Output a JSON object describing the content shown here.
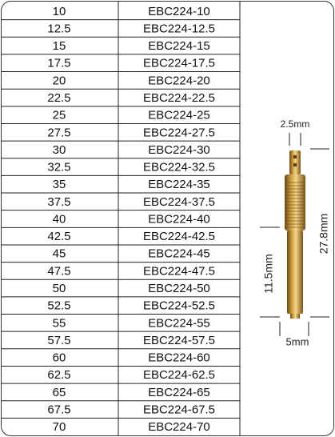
{
  "table": {
    "rows": [
      [
        "10",
        "EBC224-10"
      ],
      [
        "12.5",
        "EBC224-12.5"
      ],
      [
        "15",
        "EBC224-15"
      ],
      [
        "17.5",
        "EBC224-17.5"
      ],
      [
        "20",
        "EBC224-20"
      ],
      [
        "22.5",
        "EBC224-22.5"
      ],
      [
        "25",
        "EBC224-25"
      ],
      [
        "27.5",
        "EBC224-27.5"
      ],
      [
        "30",
        "EBC224-30"
      ],
      [
        "32.5",
        "EBC224-32.5"
      ],
      [
        "35",
        "EBC224-35"
      ],
      [
        "37.5",
        "EBC224-37.5"
      ],
      [
        "40",
        "EBC224-40"
      ],
      [
        "42.5",
        "EBC224-42.5"
      ],
      [
        "45",
        "EBC224-45"
      ],
      [
        "47.5",
        "EBC224-47.5"
      ],
      [
        "50",
        "EBC224-50"
      ],
      [
        "52.5",
        "EBC224-52.5"
      ],
      [
        "55",
        "EBC224-55"
      ],
      [
        "57.5",
        "EBC224-57.5"
      ],
      [
        "60",
        "EBC224-60"
      ],
      [
        "62.5",
        "EBC224-62.5"
      ],
      [
        "65",
        "EBC224-65"
      ],
      [
        "67.5",
        "EBC224-67.5"
      ],
      [
        "70",
        "EBC224-70"
      ]
    ]
  },
  "diagram": {
    "tip_width": "2.5mm",
    "total_length": "27.8mm",
    "lower_length": "11.5mm",
    "body_width": "5mm"
  }
}
